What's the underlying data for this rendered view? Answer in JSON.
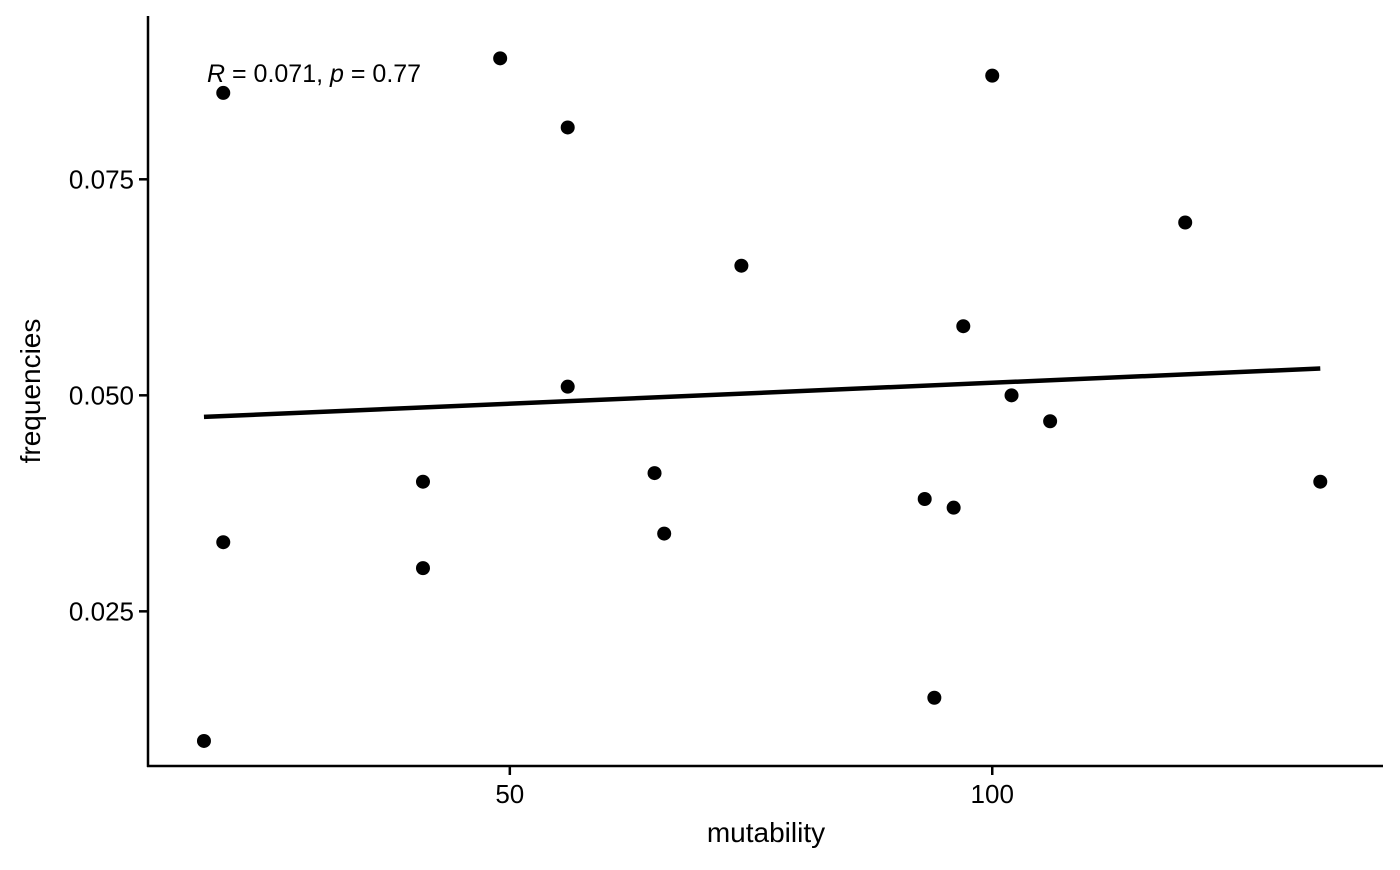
{
  "chart_data": {
    "type": "scatter",
    "title": "",
    "xlabel": "mutability",
    "ylabel": "frequencies",
    "xlim": [
      12.5,
      140.5
    ],
    "ylim": [
      0.0071,
      0.0939
    ],
    "x_ticks": [
      50,
      100
    ],
    "x_tick_labels": [
      "50",
      "100"
    ],
    "y_ticks": [
      0.025,
      0.05,
      0.075
    ],
    "y_tick_labels": [
      "0.025",
      "0.050",
      "0.075"
    ],
    "grid": false,
    "legend": "none",
    "point_color": "#000000",
    "line_color": "#000000",
    "annotation": {
      "r_symbol": "R",
      "r_value": " = 0.071, ",
      "p_symbol": "p",
      "p_value": " = 0.77"
    },
    "points": [
      {
        "x": 18.3,
        "y": 0.01
      },
      {
        "x": 20.3,
        "y": 0.033
      },
      {
        "x": 20.3,
        "y": 0.085
      },
      {
        "x": 41.0,
        "y": 0.04
      },
      {
        "x": 41.0,
        "y": 0.03
      },
      {
        "x": 49.0,
        "y": 0.089
      },
      {
        "x": 56.0,
        "y": 0.081
      },
      {
        "x": 56.0,
        "y": 0.051
      },
      {
        "x": 65.0,
        "y": 0.041
      },
      {
        "x": 66.0,
        "y": 0.034
      },
      {
        "x": 74.0,
        "y": 0.065
      },
      {
        "x": 93.0,
        "y": 0.038
      },
      {
        "x": 94.0,
        "y": 0.015
      },
      {
        "x": 96.0,
        "y": 0.037
      },
      {
        "x": 97.0,
        "y": 0.058
      },
      {
        "x": 100.0,
        "y": 0.087
      },
      {
        "x": 102.0,
        "y": 0.05
      },
      {
        "x": 106.0,
        "y": 0.047
      },
      {
        "x": 120.0,
        "y": 0.07
      },
      {
        "x": 134.0,
        "y": 0.04
      }
    ],
    "trend_line": {
      "x": [
        18.3,
        134.0
      ],
      "y": [
        0.0475,
        0.0531
      ]
    }
  }
}
